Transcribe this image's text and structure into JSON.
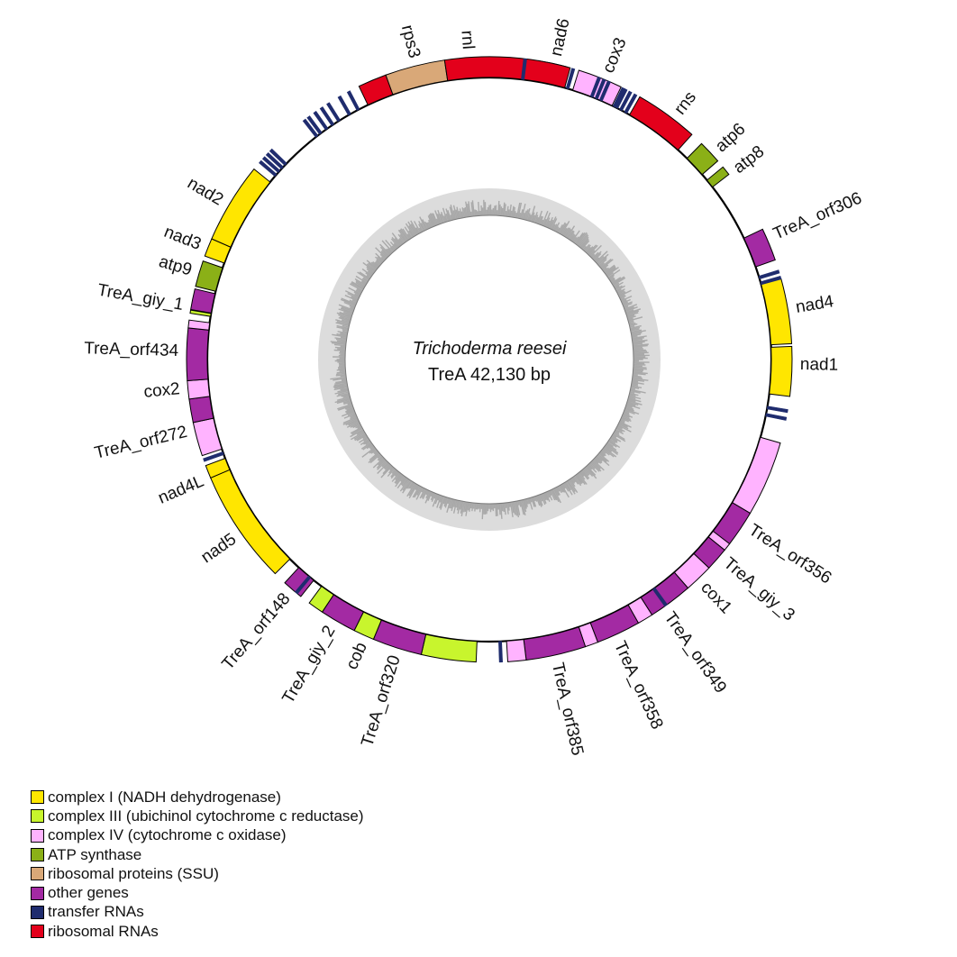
{
  "organism": "Trichoderma reesei",
  "genome_label": "TreA  42,130 bp",
  "categories": {
    "complex1": {
      "label": "complex I (NADH dehydrogenase)",
      "color": "#FFE600"
    },
    "complex3": {
      "label": "complex III (ubichinol cytochrome c reductase)",
      "color": "#C8F52D"
    },
    "complex4": {
      "label": "complex IV (cytochrome c oxidase)",
      "color": "#FFB3FF"
    },
    "atp": {
      "label": "ATP synthase",
      "color": "#8BB017"
    },
    "ribo_prot": {
      "label": "ribosomal proteins (SSU)",
      "color": "#D9A878"
    },
    "other": {
      "label": "other genes",
      "color": "#A32AA3"
    },
    "trna": {
      "label": "transfer RNAs",
      "color": "#1F2C6E"
    },
    "rrna": {
      "label": "ribosomal RNAs",
      "color": "#E3001B"
    }
  },
  "legend_order": [
    "complex1",
    "complex3",
    "complex4",
    "atp",
    "ribo_prot",
    "other",
    "trna",
    "rrna"
  ],
  "genes": [
    {
      "name": "nad6",
      "cat": "complex1",
      "start": 9.3,
      "end": 14.8,
      "strand": "out"
    },
    {
      "name": "cox3",
      "cat": "complex4",
      "start": 17.2,
      "end": 25.8,
      "strand": "out"
    },
    {
      "name": "rns",
      "cat": "rrna",
      "start": 29.8,
      "end": 42.0,
      "strand": "out"
    },
    {
      "name": "atp6",
      "cat": "atp",
      "start": 44.5,
      "end": 49.0,
      "strand": "out"
    },
    {
      "name": "atp8",
      "cat": "atp",
      "start": 50.5,
      "end": 52.3,
      "strand": "out"
    },
    {
      "name": "TreA_orf306",
      "cat": "other",
      "start": 64.5,
      "end": 70.8,
      "strand": "out"
    },
    {
      "name": "nad4",
      "cat": "complex1",
      "start": 74.5,
      "end": 87.0,
      "strand": "out"
    },
    {
      "name": "nad1",
      "cat": "complex1",
      "start": 87.5,
      "end": 97.0,
      "strand": "out"
    },
    {
      "name": "",
      "cat": "complex4",
      "start": 106.0,
      "end": 120.5,
      "strand": "out"
    },
    {
      "name": "TreA_orf356",
      "cat": "other",
      "start": 120.5,
      "end": 127.5,
      "strand": "out"
    },
    {
      "name": "",
      "cat": "complex4",
      "start": 127.5,
      "end": 129.0,
      "strand": "out"
    },
    {
      "name": "TreA_giy_3",
      "cat": "other",
      "start": 129.0,
      "end": 133.5,
      "strand": "out"
    },
    {
      "name": "cox1",
      "cat": "complex4",
      "start": 133.5,
      "end": 139.0,
      "strand": "out"
    },
    {
      "name": "TreA_orf349",
      "cat": "other",
      "start": 139.0,
      "end": 147.5,
      "strand": "out"
    },
    {
      "name": "",
      "cat": "complex4",
      "start": 147.5,
      "end": 150.5,
      "strand": "out"
    },
    {
      "name": "TreA_orf358",
      "cat": "other",
      "start": 150.5,
      "end": 159.0,
      "strand": "out"
    },
    {
      "name": "",
      "cat": "complex4",
      "start": 159.0,
      "end": 161.5,
      "strand": "out"
    },
    {
      "name": "TreA_orf385",
      "cat": "other",
      "start": 161.5,
      "end": 173.0,
      "strand": "out"
    },
    {
      "name": "",
      "cat": "complex4",
      "start": 173.0,
      "end": 176.5,
      "strand": "out"
    },
    {
      "name": "",
      "cat": "complex3",
      "start": 182.5,
      "end": 193.0,
      "strand": "out"
    },
    {
      "name": "TreA_orf320",
      "cat": "other",
      "start": 193.0,
      "end": 202.5,
      "strand": "out"
    },
    {
      "name": "cob",
      "cat": "complex3",
      "start": 202.5,
      "end": 206.5,
      "strand": "out"
    },
    {
      "name": "TreA_giy_2",
      "cat": "other",
      "start": 206.5,
      "end": 213.5,
      "strand": "out"
    },
    {
      "name": "",
      "cat": "complex3",
      "start": 213.5,
      "end": 216.5,
      "strand": "out"
    },
    {
      "name": "TreA_orf148",
      "cat": "other",
      "start": 218.5,
      "end": 222.5,
      "strand": "out"
    },
    {
      "name": "nad5",
      "cat": "complex1",
      "start": 225.0,
      "end": 247.0,
      "strand": "out"
    },
    {
      "name": "nad4L",
      "cat": "complex1",
      "start": 247.0,
      "end": 249.5,
      "strand": "out"
    },
    {
      "name": "TreA_orf272",
      "cat": "complex4",
      "start": 251.5,
      "end": 258.0,
      "strand": "out"
    },
    {
      "name": "",
      "cat": "other",
      "start": 258.0,
      "end": 262.5,
      "strand": "out"
    },
    {
      "name": "cox2",
      "cat": "complex4",
      "start": 262.5,
      "end": 266.0,
      "strand": "out"
    },
    {
      "name": "TreA_orf434",
      "cat": "other",
      "start": 266.0,
      "end": 276.0,
      "strand": "out"
    },
    {
      "name": "",
      "cat": "complex4",
      "start": 276.0,
      "end": 277.5,
      "strand": "out"
    },
    {
      "name": "",
      "cat": "complex3",
      "start": 278.8,
      "end": 279.4,
      "strand": "out"
    },
    {
      "name": "TreA_giy_1",
      "cat": "other",
      "start": 279.5,
      "end": 283.5,
      "strand": "out"
    },
    {
      "name": "atp9",
      "cat": "atp",
      "start": 284.0,
      "end": 289.0,
      "strand": "out"
    },
    {
      "name": "nad3",
      "cat": "complex1",
      "start": 290.0,
      "end": 293.5,
      "strand": "out"
    },
    {
      "name": "nad2",
      "cat": "complex1",
      "start": 293.5,
      "end": 309.0,
      "strand": "out"
    },
    {
      "name": "",
      "cat": "rrna",
      "start": 334.5,
      "end": 340.0,
      "strand": "out"
    },
    {
      "name": "rps3",
      "cat": "ribo_prot",
      "start": 340.0,
      "end": 351.5,
      "strand": "out"
    },
    {
      "name": "rnl",
      "cat": "rrna",
      "start": 351.5,
      "end": 375.5,
      "strand": "out"
    }
  ],
  "trnas": [
    381.0,
    382.0,
    383.0,
    386.0,
    6.5,
    15.8,
    26.5,
    27.5,
    28.6,
    72.8,
    74.0,
    99.5,
    101.0,
    144.0,
    177.5,
    219.3,
    250.3,
    310.5,
    311.5,
    312.5,
    313.5,
    322.0,
    323.0,
    324.5,
    326.0,
    327.5,
    330.0,
    332.0
  ],
  "labels": [
    {
      "text": "rps3",
      "angle": 346.0
    },
    {
      "text": "rnl",
      "angle": 356.0
    },
    {
      "text": "nad6",
      "angle": 12.5
    },
    {
      "text": "cox3",
      "angle": 22.5
    },
    {
      "text": "rns",
      "angle": 37.5
    },
    {
      "text": "atp6",
      "angle": 47.5
    },
    {
      "text": "atp8",
      "angle": 52.5
    },
    {
      "text": "TreA_orf306",
      "angle": 66.5
    },
    {
      "text": "nad4",
      "angle": 80.5
    },
    {
      "text": "nad1",
      "angle": 91.0
    },
    {
      "text": "TreA_orf356",
      "angle": 123.0
    },
    {
      "text": "TreA_giy_3",
      "angle": 130.5
    },
    {
      "text": "cox1",
      "angle": 136.5
    },
    {
      "text": "TreA_orf349",
      "angle": 145.0
    },
    {
      "text": "TreA_orf358",
      "angle": 155.5
    },
    {
      "text": "TreA_orf385",
      "angle": 167.5
    },
    {
      "text": "TreA_orf320",
      "angle": 197.5
    },
    {
      "text": "cob",
      "angle": 204.0
    },
    {
      "text": "TreA_giy_2",
      "angle": 210.5
    },
    {
      "text": "TreA_orf148",
      "angle": 220.5
    },
    {
      "text": "nad5",
      "angle": 235.0
    },
    {
      "text": "nad4L",
      "angle": 247.0
    },
    {
      "text": "TreA_orf272",
      "angle": 256.5
    },
    {
      "text": "cox2",
      "angle": 264.5
    },
    {
      "text": "TreA_orf434",
      "angle": 271.5
    },
    {
      "text": "TreA_giy_1",
      "angle": 280.0
    },
    {
      "text": "atp9",
      "angle": 286.5
    },
    {
      "text": "nad3",
      "angle": 291.5
    },
    {
      "text": "nad2",
      "angle": 300.5
    }
  ]
}
